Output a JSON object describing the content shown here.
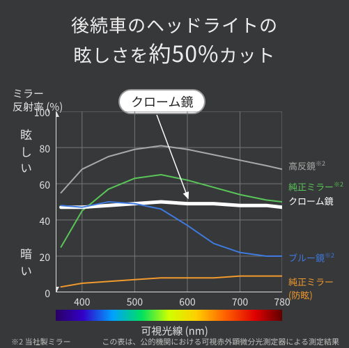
{
  "title_l1": "後続車のヘッドライトの",
  "title_l2a": "眩しさを",
  "title_l2b": "約50%",
  "title_l2c": "カット",
  "y_axis_title": "ミラー\n反射率 (%)",
  "bright_label": "眩しい",
  "dark_label": "暗い",
  "x_axis_title": "可視光線 (nm)",
  "callout": "クローム鏡",
  "footnote1": "※2 当社製ミラー",
  "footnote2": "この表は、公的機関における可視赤外顕微分光測定器による測定結果",
  "chart": {
    "type": "line",
    "xlim": [
      350,
      780
    ],
    "ylim": [
      0,
      100
    ],
    "yticks": [
      0,
      20,
      40,
      60,
      80,
      100
    ],
    "xticks": [
      400,
      500,
      600,
      700
    ],
    "xtick_tail": 780,
    "axis_color": "#e0e0e0",
    "grid_color": "#767676",
    "tick_font": 14,
    "plot_bg": "#373839",
    "series": [
      {
        "name": "high",
        "label": "高反鏡",
        "sup": "※2",
        "color": "#a9a9a9",
        "width": 2,
        "x": [
          360,
          400,
          450,
          500,
          550,
          600,
          650,
          700,
          750,
          780
        ],
        "y": [
          55,
          68,
          75,
          79,
          81,
          79,
          76,
          73,
          70,
          68
        ]
      },
      {
        "name": "oem",
        "label": "純正ミラー",
        "sup": "※2",
        "color": "#59c659",
        "width": 2,
        "x": [
          360,
          400,
          450,
          500,
          550,
          600,
          650,
          700,
          750,
          780
        ],
        "y": [
          25,
          45,
          57,
          63,
          65,
          62,
          58,
          54,
          51,
          50
        ]
      },
      {
        "name": "chrome",
        "label": "クローム鏡",
        "sup": "",
        "color": "#ffffff",
        "width": 5,
        "x": [
          360,
          400,
          450,
          500,
          550,
          600,
          650,
          700,
          750,
          780
        ],
        "y": [
          47,
          47,
          48,
          49,
          50,
          49,
          49,
          48,
          48,
          47
        ]
      },
      {
        "name": "blue",
        "label": "ブルー鏡",
        "sup": "※2",
        "color": "#3e7ae0",
        "width": 2,
        "x": [
          360,
          400,
          450,
          500,
          550,
          600,
          650,
          700,
          750,
          780
        ],
        "y": [
          48,
          47,
          50,
          49,
          46,
          37,
          27,
          22,
          20,
          20
        ]
      },
      {
        "name": "oem_ag",
        "label": "純正ミラー\n(防眩)",
        "sup": "",
        "color": "#f29a2e",
        "width": 2,
        "x": [
          360,
          400,
          450,
          500,
          550,
          600,
          650,
          700,
          750,
          780
        ],
        "y": [
          3,
          5,
          6,
          7,
          8,
          8,
          8,
          9,
          9,
          9
        ]
      }
    ],
    "series_label_pos": {
      "high": {
        "x": 414,
        "y": 228,
        "color": "#a9a9a9"
      },
      "oem": {
        "x": 414,
        "y": 258,
        "color": "#59c659"
      },
      "chrome": {
        "x": 414,
        "y": 279,
        "color": "#ffffff"
      },
      "blue": {
        "x": 414,
        "y": 360,
        "color": "#3e7ae0"
      },
      "oem_ag": {
        "x": 414,
        "y": 395,
        "color": "#f29a2e"
      }
    },
    "arrow": {
      "from": [
        225,
        165
      ],
      "to": [
        270,
        285
      ],
      "color": "#ffffff"
    }
  },
  "spectrum_stops": [
    {
      "p": 0,
      "c": "#2a0063"
    },
    {
      "p": 12,
      "c": "#3200c8"
    },
    {
      "p": 25,
      "c": "#00a0ff"
    },
    {
      "p": 38,
      "c": "#00e060"
    },
    {
      "p": 50,
      "c": "#d0ff00"
    },
    {
      "p": 62,
      "c": "#ffd000"
    },
    {
      "p": 75,
      "c": "#ff6000"
    },
    {
      "p": 88,
      "c": "#e00000"
    },
    {
      "p": 100,
      "c": "#600000"
    }
  ]
}
